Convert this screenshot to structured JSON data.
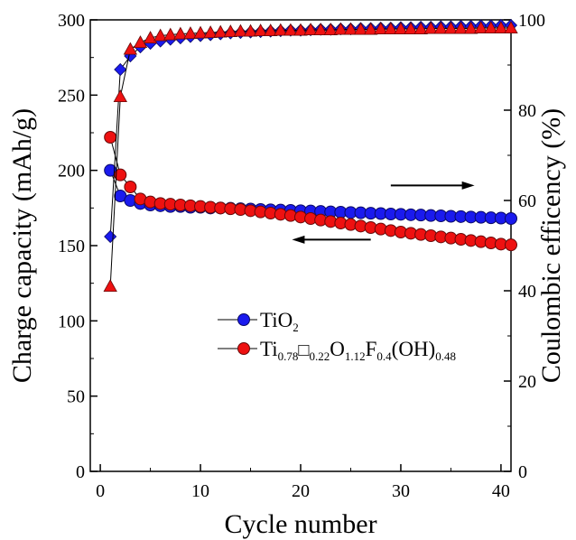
{
  "chart_data": {
    "type": "scatter",
    "xlabel": "Cycle number",
    "ylabel_left": "Charge capacity (mAh/g)",
    "ylabel_right": "Coulombic efficency (%)",
    "xlim": [
      -1,
      41
    ],
    "ylim_left": [
      0,
      300
    ],
    "ylim_right": [
      0,
      100
    ],
    "x_ticks": [
      0,
      10,
      20,
      30,
      40
    ],
    "y_ticks_left": [
      0,
      50,
      100,
      150,
      200,
      250,
      300
    ],
    "y_ticks_right": [
      0,
      20,
      40,
      60,
      80,
      100
    ],
    "grid": false,
    "legend_position": "center-left",
    "colors": {
      "tio2": "#1a1aee",
      "doped": "#ee1111"
    },
    "legend": {
      "tio2_label": "TiO",
      "tio2_sub": "2",
      "doped_parts": {
        "ti": "Ti",
        "s1": "0.78",
        "box": "□",
        "s2": "0.22",
        "o": "O",
        "s3": "1.12",
        "f": "F",
        "s4": "0.4",
        "oh": "(OH)",
        "s5": "0.48"
      }
    },
    "series": [
      {
        "name": "TiO2",
        "axis": "left",
        "marker": "circle",
        "color": "#1a1aee",
        "x": [
          1,
          2,
          3,
          4,
          5,
          6,
          7,
          8,
          9,
          10,
          11,
          12,
          13,
          14,
          15,
          16,
          17,
          18,
          19,
          20,
          21,
          22,
          23,
          24,
          25,
          26,
          27,
          28,
          29,
          30,
          31,
          32,
          33,
          34,
          35,
          36,
          37,
          38,
          39,
          40,
          41
        ],
        "values": [
          200,
          183,
          180,
          178,
          177,
          176.5,
          176,
          176,
          175.5,
          175.5,
          175,
          175,
          174.8,
          174.5,
          174.3,
          174,
          173.8,
          173.6,
          173.4,
          173.2,
          173,
          172.7,
          172.4,
          172.2,
          172,
          171.8,
          171.5,
          171.3,
          171,
          170.8,
          170.5,
          170.3,
          170,
          169.8,
          169.5,
          169.3,
          169,
          168.8,
          168.5,
          168.3,
          168
        ]
      },
      {
        "name": "Ti0.78□0.22O1.12F0.4(OH)0.48",
        "axis": "left",
        "marker": "circle",
        "color": "#ee1111",
        "x": [
          1,
          2,
          3,
          4,
          5,
          6,
          7,
          8,
          9,
          10,
          11,
          12,
          13,
          14,
          15,
          16,
          17,
          18,
          19,
          20,
          21,
          22,
          23,
          24,
          25,
          26,
          27,
          28,
          29,
          30,
          31,
          32,
          33,
          34,
          35,
          36,
          37,
          38,
          39,
          40,
          41
        ],
        "values": [
          222,
          197,
          189,
          181,
          179,
          178,
          177.5,
          177,
          176.5,
          176,
          175.5,
          175,
          174.5,
          174,
          173.2,
          172.4,
          171.6,
          170.8,
          170,
          169,
          168,
          167,
          166,
          165,
          164,
          163,
          162,
          161,
          160,
          159,
          158.2,
          157.4,
          156.6,
          155.8,
          155,
          154.2,
          153.4,
          152.6,
          151.8,
          151,
          150.5
        ]
      },
      {
        "name": "TiO2 efficiency",
        "axis": "right",
        "marker": "diamond",
        "color": "#1a1aee",
        "x": [
          1,
          2,
          3,
          4,
          5,
          6,
          7,
          8,
          9,
          10,
          11,
          12,
          13,
          14,
          15,
          16,
          17,
          18,
          19,
          20,
          21,
          22,
          23,
          24,
          25,
          26,
          27,
          28,
          29,
          30,
          31,
          32,
          33,
          34,
          35,
          36,
          37,
          38,
          39,
          40,
          41
        ],
        "values": [
          52,
          89,
          92,
          94,
          94.8,
          95.3,
          95.7,
          96,
          96.3,
          96.5,
          96.7,
          96.9,
          97.1,
          97.2,
          97.3,
          97.4,
          97.5,
          97.6,
          97.7,
          97.7,
          97.8,
          97.9,
          97.9,
          98,
          98,
          98.1,
          98.1,
          98.2,
          98.2,
          98.3,
          98.3,
          98.4,
          98.4,
          98.5,
          98.5,
          98.6,
          98.6,
          98.7,
          98.7,
          98.8,
          98.8
        ]
      },
      {
        "name": "doped efficiency",
        "axis": "right",
        "marker": "triangle",
        "color": "#ee1111",
        "x": [
          1,
          2,
          3,
          4,
          5,
          6,
          7,
          8,
          9,
          10,
          11,
          12,
          13,
          14,
          15,
          16,
          17,
          18,
          19,
          20,
          21,
          22,
          23,
          24,
          25,
          26,
          27,
          28,
          29,
          30,
          31,
          32,
          33,
          34,
          35,
          36,
          37,
          38,
          39,
          40,
          41
        ],
        "values": [
          41,
          83,
          93.5,
          95,
          96,
          96.5,
          96.7,
          96.9,
          97,
          97.1,
          97.2,
          97.3,
          97.4,
          97.5,
          97.5,
          97.6,
          97.6,
          97.7,
          97.7,
          97.7,
          97.8,
          97.8,
          97.8,
          97.9,
          97.9,
          97.9,
          97.9,
          98,
          98,
          98,
          98,
          98,
          98.1,
          98.1,
          98.1,
          98.1,
          98.1,
          98.2,
          98.2,
          98.2,
          98.2
        ]
      }
    ],
    "annotations": [
      {
        "text": "arrow pointing right (efficiency, right axis)",
        "direction": "right",
        "x_from": 29,
        "x_to": 37,
        "y": 190,
        "axis": "left-scale"
      },
      {
        "text": "arrow pointing left (capacity, left axis)",
        "direction": "left",
        "x_from": 27,
        "x_to": 19.5,
        "y": 154,
        "axis": "left-scale"
      }
    ]
  }
}
